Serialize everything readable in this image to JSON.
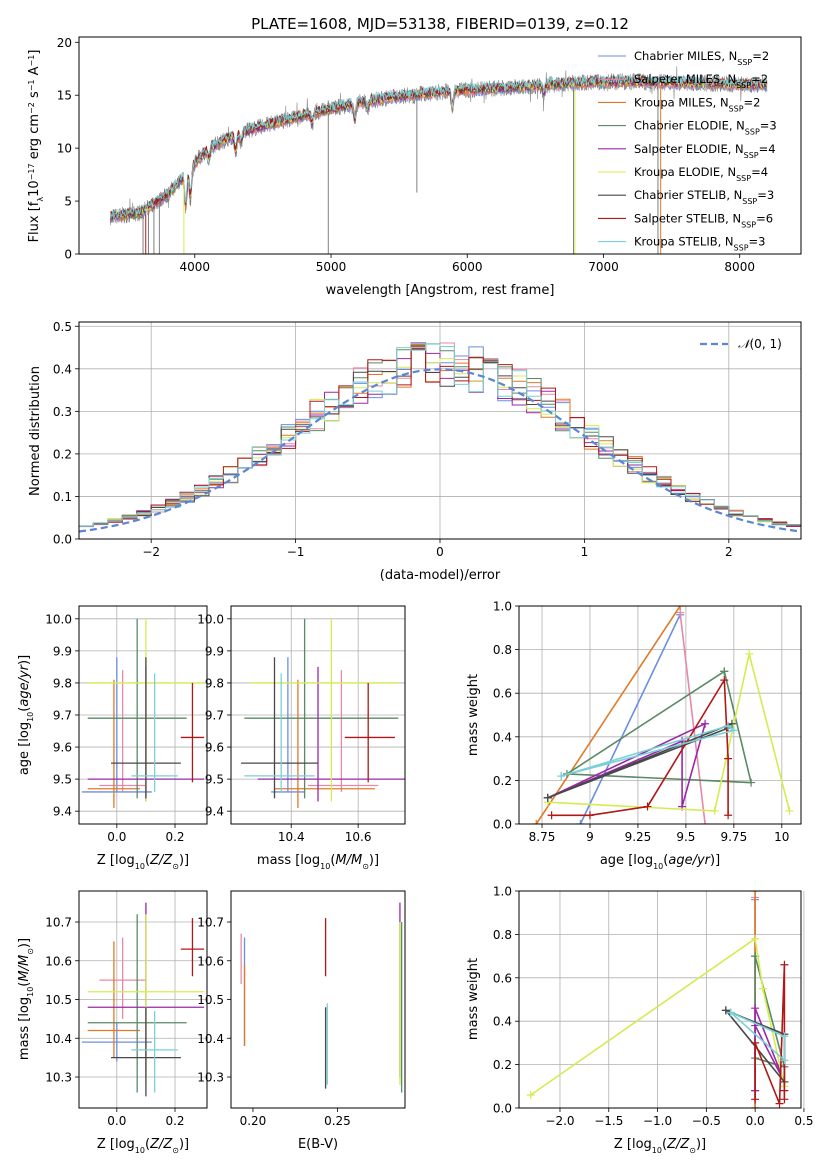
{
  "title": "PLATE=1608, MJD=53138, FIBERID=0139, z=0.12",
  "colors": {
    "Chabrier MILES": "#6a8fe0",
    "Salpeter MILES": "#e888a8",
    "Kroupa MILES": "#e07a28",
    "Chabrier ELODIE": "#5a8a64",
    "Salpeter ELODIE": "#9a28a8",
    "Kroupa ELODIE": "#d4ec50",
    "Chabrier STELIB": "#484848",
    "Salpeter STELIB": "#b01818",
    "Kroupa STELIB": "#7ad0d8",
    "data": "#808080"
  },
  "chart_data": [
    {
      "type": "line",
      "xlabel": "wavelength [Angstrom, rest frame]",
      "ylabel": "Flux [f_λ10^-17 erg cm^-2 s^-1 A^-1]",
      "xlim": [
        3150,
        8450
      ],
      "ylim": [
        0,
        20.5
      ],
      "xticks": [
        4000,
        5000,
        6000,
        7000,
        8000
      ],
      "yticks": [
        0,
        5,
        10,
        15,
        20
      ],
      "grid": false,
      "legend_position": "right",
      "series": [
        {
          "name": "Chabrier MILES, N_SSP=2"
        },
        {
          "name": "Salpeter MILES, N_SSP=2"
        },
        {
          "name": "Kroupa MILES, N_SSP=2"
        },
        {
          "name": "Chabrier ELODIE, N_SSP=3"
        },
        {
          "name": "Salpeter ELODIE, N_SSP=4"
        },
        {
          "name": "Kroupa ELODIE, N_SSP=4"
        },
        {
          "name": "Chabrier STELIB, N_SSP=3"
        },
        {
          "name": "Salpeter STELIB, N_SSP=6"
        },
        {
          "name": "Kroupa STELIB, N_SSP=3"
        }
      ],
      "continuum": {
        "x": [
          3380,
          3600,
          3800,
          3950,
          4100,
          4300,
          4500,
          4800,
          5000,
          5200,
          5500,
          5800,
          6000,
          6300,
          6600,
          6900,
          7200,
          7500,
          7800,
          8100,
          8200
        ],
        "y": [
          3.5,
          3.9,
          5.6,
          7.8,
          10.0,
          11.3,
          12.1,
          13.1,
          13.7,
          14.3,
          14.9,
          15.3,
          15.5,
          15.7,
          16.0,
          16.2,
          16.3,
          16.2,
          16.1,
          16.0,
          16.0
        ]
      },
      "absorption_features": [
        {
          "x": 3934,
          "depth": 3.5
        },
        {
          "x": 3968,
          "depth": 3.0
        },
        {
          "x": 4102,
          "depth": 1.2
        },
        {
          "x": 4300,
          "depth": 1.8
        },
        {
          "x": 4340,
          "depth": 1.0
        },
        {
          "x": 4861,
          "depth": 1.0
        },
        {
          "x": 5175,
          "depth": 1.8
        },
        {
          "x": 5270,
          "depth": 0.8
        },
        {
          "x": 5890,
          "depth": 1.5
        },
        {
          "x": 6563,
          "depth": 0.8
        }
      ],
      "data_spikes": [
        {
          "x": 3620,
          "y0": 0,
          "y1": 4.0
        },
        {
          "x": 3660,
          "y0": 0,
          "y1": 4.2
        },
        {
          "x": 3700,
          "y0": 0,
          "y1": 4.5
        },
        {
          "x": 3740,
          "y0": 0,
          "y1": 5.0
        },
        {
          "x": 4980,
          "y0": 0,
          "y1": 14.5
        },
        {
          "x": 5630,
          "y0": 5.8,
          "y1": 15.0
        },
        {
          "x": 6780,
          "y0": 0,
          "y1": 16.5
        },
        {
          "x": 7400,
          "y0": 0,
          "y1": 16.2
        }
      ]
    },
    {
      "type": "line",
      "xlabel": "(data-model)/error",
      "ylabel": "Normed distribution",
      "xlim": [
        -2.5,
        2.5
      ],
      "ylim": [
        0,
        0.51
      ],
      "xticks": [
        -2,
        -1,
        0,
        1,
        2
      ],
      "yticks": [
        0.0,
        0.1,
        0.2,
        0.3,
        0.4,
        0.5
      ],
      "grid": true,
      "legend": "N(0,1)",
      "legend_position": "upper right",
      "histogram_bins": {
        "start": -2.5,
        "width": 0.1,
        "count": 50
      }
    },
    {
      "type": "scatter",
      "xlabel": "Z [log10(Z/Z⊙)]",
      "ylabel": "age  [log10(age/yr)]",
      "xlim": [
        -0.13,
        0.31
      ],
      "ylim": [
        9.36,
        10.04
      ],
      "xticks": [
        0.0,
        0.2
      ],
      "yticks": [
        9.4,
        9.5,
        9.6,
        9.7,
        9.8,
        9.9,
        10.0
      ],
      "grid": true
    },
    {
      "type": "scatter",
      "xlabel": "mass [log10(M/M⊙)]",
      "xlim": [
        10.22,
        10.74
      ],
      "ylim": [
        9.36,
        10.04
      ],
      "xticks": [
        10.4,
        10.6
      ],
      "yticks": [
        9.4,
        9.5,
        9.6,
        9.7,
        9.8,
        9.9,
        10.0
      ],
      "grid": true
    },
    {
      "type": "line",
      "xlabel": "age  [log10(age/yr)]",
      "ylabel": "mass weight",
      "xlim": [
        8.63,
        10.1
      ],
      "ylim": [
        0,
        1.0
      ],
      "xticks": [
        8.75,
        9.0,
        9.25,
        9.5,
        9.75,
        10.0
      ],
      "yticks": [
        0.0,
        0.2,
        0.4,
        0.6,
        0.8,
        1.0
      ],
      "grid": true
    },
    {
      "type": "scatter",
      "xlabel": "Z [log10(Z/Z⊙)]",
      "ylabel": "mass [log10(M/M⊙)]",
      "xlim": [
        -0.13,
        0.31
      ],
      "ylim": [
        10.22,
        10.78
      ],
      "xticks": [
        0.0,
        0.2
      ],
      "yticks": [
        10.3,
        10.4,
        10.5,
        10.6,
        10.7
      ],
      "grid": true
    },
    {
      "type": "scatter",
      "xlabel": "E(B-V)",
      "xlim": [
        0.187,
        0.29
      ],
      "ylim": [
        10.22,
        10.78
      ],
      "xticks": [
        0.2,
        0.25
      ],
      "yticks": [
        10.3,
        10.4,
        10.5,
        10.6,
        10.7
      ],
      "grid": false
    },
    {
      "type": "line",
      "xlabel": "Z [log10(Z/Z⊙)]",
      "ylabel": "mass weight",
      "xlim": [
        -2.42,
        0.47
      ],
      "ylim": [
        0,
        1.0
      ],
      "xticks": [
        -2.0,
        -1.5,
        -1.0,
        -0.5,
        0.0,
        0.5
      ],
      "yticks": [
        0.0,
        0.2,
        0.4,
        0.6,
        0.8,
        1.0
      ],
      "grid": true
    }
  ],
  "models": [
    {
      "key": "Chabrier MILES",
      "Z": 0.0,
      "Z_err": 0.12,
      "age": 9.46,
      "age_lo": 9.46,
      "age_hi": 9.88,
      "mass": 10.39,
      "mass_lo": 10.34,
      "mass_hi": 10.44,
      "mass_err": 0.03,
      "ebv": 0.195,
      "ebv_mass_lo": 10.38,
      "ebv_mass_hi": 10.66,
      "age_w": [
        [
          8.95,
          0.0
        ],
        [
          9.47,
          0.96
        ]
      ],
      "Z_w": [
        [
          0.0,
          0.0
        ],
        [
          0.0,
          0.96
        ]
      ]
    },
    {
      "key": "Salpeter MILES",
      "Z": 0.02,
      "Z_err": 0.08,
      "age": 9.48,
      "age_lo": 9.46,
      "age_hi": 9.84,
      "mass": 10.55,
      "mass_lo": 10.45,
      "mass_hi": 10.66,
      "mass_err": 0.02,
      "ebv": 0.193,
      "ebv_mass_lo": 10.54,
      "ebv_mass_hi": 10.67,
      "age_w": [
        [
          9.47,
          0.97
        ],
        [
          9.6,
          0.0
        ]
      ],
      "Z_w": [
        [
          0.0,
          0.0
        ],
        [
          0.0,
          0.97
        ]
      ]
    },
    {
      "key": "Kroupa MILES",
      "Z": -0.01,
      "Z_err": 0.09,
      "age": 9.47,
      "age_lo": 9.41,
      "age_hi": 9.81,
      "mass": 10.42,
      "mass_lo": 10.35,
      "mass_hi": 10.65,
      "mass_err": 0.02,
      "ebv": 0.195,
      "ebv_mass_lo": 10.38,
      "ebv_mass_hi": 10.59,
      "age_w": [
        [
          8.72,
          0.0
        ],
        [
          9.47,
          1.0
        ]
      ],
      "Z_w": [
        [
          0.0,
          0.0
        ],
        [
          0.0,
          1.0
        ]
      ]
    },
    {
      "key": "Chabrier ELODIE",
      "Z": 0.07,
      "Z_err": 0.17,
      "age": 9.69,
      "age_lo": 9.44,
      "age_hi": 10.0,
      "mass": 10.44,
      "mass_lo": 10.26,
      "mass_hi": 10.72,
      "mass_err": 0.05,
      "ebv": 0.288,
      "ebv_mass_lo": 10.26,
      "ebv_mass_hi": 10.7,
      "age_w": [
        [
          9.7,
          0.7
        ],
        [
          9.84,
          0.19
        ],
        [
          8.88,
          0.23
        ],
        [
          9.7,
          0.7
        ]
      ],
      "Z_w": [
        [
          0.0,
          0.7
        ],
        [
          0.3,
          0.19
        ],
        [
          0.0,
          0.23
        ],
        [
          0.0,
          0.7
        ]
      ]
    },
    {
      "key": "Salpeter ELODIE",
      "Z": 0.1,
      "Z_err": 0.2,
      "age": 9.5,
      "age_lo": 9.43,
      "age_hi": 9.85,
      "mass": 10.48,
      "mass_lo": 10.3,
      "mass_hi": 10.75,
      "mass_err": 0.05,
      "ebv": 0.287,
      "ebv_mass_lo": 10.3,
      "ebv_mass_hi": 10.75,
      "age_w": [
        [
          9.48,
          0.08
        ],
        [
          9.48,
          0.38
        ],
        [
          8.78,
          0.12
        ],
        [
          9.6,
          0.46
        ],
        [
          9.48,
          0.08
        ]
      ],
      "Z_w": [
        [
          0.0,
          0.08
        ],
        [
          0.0,
          0.46
        ],
        [
          0.3,
          0.12
        ],
        [
          0.0,
          0.38
        ],
        [
          0.0,
          0.08
        ]
      ]
    },
    {
      "key": "Kroupa ELODIE",
      "Z": 0.1,
      "Z_err": 0.2,
      "age": 9.8,
      "age_lo": 9.43,
      "age_hi": 10.0,
      "mass": 10.52,
      "mass_lo": 10.28,
      "mass_hi": 10.72,
      "mass_err": 0.05,
      "ebv": 0.287,
      "ebv_mass_lo": 10.28,
      "ebv_mass_hi": 10.7,
      "age_w": [
        [
          8.78,
          0.1
        ],
        [
          9.65,
          0.06
        ],
        [
          9.83,
          0.78
        ],
        [
          10.04,
          0.06
        ]
      ],
      "Z_w": [
        [
          -2.3,
          0.06
        ],
        [
          0.0,
          0.78
        ],
        [
          0.08,
          0.55
        ],
        [
          0.3,
          0.1
        ]
      ]
    },
    {
      "key": "Chabrier STELIB",
      "Z": 0.1,
      "Z_err": 0.12,
      "age": 9.55,
      "age_lo": 9.44,
      "age_hi": 9.88,
      "mass": 10.35,
      "mass_lo": 10.25,
      "mass_hi": 10.48,
      "mass_err": 0.04,
      "ebv": 0.243,
      "ebv_mass_lo": 10.27,
      "ebv_mass_hi": 10.48,
      "age_w": [
        [
          8.78,
          0.12
        ],
        [
          9.74,
          0.46
        ],
        [
          9.72,
          0.44
        ],
        [
          8.78,
          0.12
        ]
      ],
      "Z_w": [
        [
          -0.3,
          0.45
        ],
        [
          0.3,
          0.12
        ],
        [
          0.3,
          0.34
        ],
        [
          -0.3,
          0.45
        ]
      ]
    },
    {
      "key": "Salpeter STELIB",
      "Z": 0.26,
      "Z_err": 0.04,
      "age": 9.63,
      "age_lo": 9.49,
      "age_hi": 9.8,
      "mass": 10.63,
      "mass_lo": 10.56,
      "mass_hi": 10.71,
      "mass_err": 0.03,
      "ebv": 0.243,
      "ebv_mass_lo": 10.56,
      "ebv_mass_hi": 10.71,
      "age_w": [
        [
          8.8,
          0.04
        ],
        [
          9.0,
          0.04
        ],
        [
          9.3,
          0.08
        ],
        [
          9.7,
          0.66
        ],
        [
          9.72,
          0.3
        ],
        [
          9.72,
          0.04
        ]
      ],
      "Z_w": [
        [
          0.0,
          0.04
        ],
        [
          0.0,
          0.3
        ],
        [
          0.25,
          0.02
        ],
        [
          0.3,
          0.66
        ],
        [
          0.3,
          0.08
        ],
        [
          0.3,
          0.04
        ]
      ]
    },
    {
      "key": "Kroupa STELIB",
      "Z": 0.13,
      "Z_err": 0.08,
      "age": 9.51,
      "age_lo": 9.46,
      "age_hi": 9.83,
      "mass": 10.37,
      "mass_lo": 10.26,
      "mass_hi": 10.47,
      "mass_err": 0.04,
      "ebv": 0.244,
      "ebv_mass_lo": 10.28,
      "ebv_mass_hi": 10.49,
      "age_w": [
        [
          8.85,
          0.22
        ],
        [
          9.75,
          0.43
        ],
        [
          9.72,
          0.45
        ],
        [
          8.85,
          0.22
        ]
      ],
      "Z_w": [
        [
          -0.25,
          0.44
        ],
        [
          0.3,
          0.22
        ],
        [
          0.3,
          0.33
        ],
        [
          -0.25,
          0.44
        ]
      ]
    }
  ]
}
